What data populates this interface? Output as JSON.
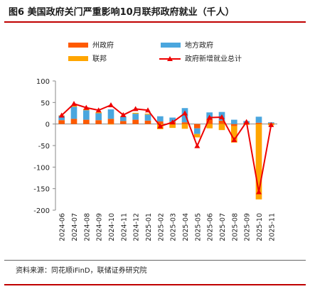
{
  "figure_title": "图6  美国政府关门严重影响10月联邦政府就业（千人）",
  "source_note": "资料来源：同花顺iFinD，联储证券研究院",
  "colors": {
    "state": "#ff5a00",
    "local": "#4aa6de",
    "federal": "#ffa500",
    "total": "#ee0000",
    "accent_rule": "#c00000"
  },
  "chart_data": {
    "type": "bar",
    "stacked": true,
    "categories": [
      "2024-06",
      "2024-07",
      "2024-08",
      "2024-09",
      "2024-10",
      "2024-11",
      "2024-12",
      "2025-01",
      "2025-02",
      "2025-03",
      "2025-04",
      "2025-05",
      "2025-06",
      "2025-07",
      "2025-08",
      "2025-09",
      "2025-10",
      "2025-11"
    ],
    "series": [
      {
        "name": "州政府",
        "type": "bar",
        "color": "#ff5a00",
        "values": [
          9,
          12,
          10,
          9,
          12,
          7,
          10,
          8,
          6,
          5,
          4,
          -10,
          12,
          8,
          -5,
          2,
          3,
          2
        ]
      },
      {
        "name": "地方政府",
        "type": "bar",
        "color": "#4aa6de",
        "values": [
          10,
          28,
          22,
          16,
          22,
          10,
          14,
          14,
          12,
          10,
          33,
          -13,
          15,
          20,
          10,
          5,
          14,
          2
        ]
      },
      {
        "name": "联邦",
        "type": "bar",
        "color": "#ffa500",
        "values": [
          1,
          3,
          3,
          2,
          -1,
          1,
          2,
          2,
          -12,
          -9,
          -11,
          -8,
          -10,
          -14,
          -38,
          -2,
          -175,
          -3
        ]
      },
      {
        "name": "政府新增就业总计",
        "type": "line",
        "color": "#ee0000",
        "values": [
          20,
          47,
          38,
          32,
          44,
          21,
          35,
          32,
          -5,
          4,
          25,
          -51,
          15,
          16,
          -37,
          5,
          -158,
          -2
        ]
      }
    ],
    "ylim": [
      -200,
      100
    ],
    "yticks": [
      100,
      50,
      0,
      -50,
      -100,
      -150,
      -200
    ],
    "legend_position": "top",
    "grid": false
  }
}
